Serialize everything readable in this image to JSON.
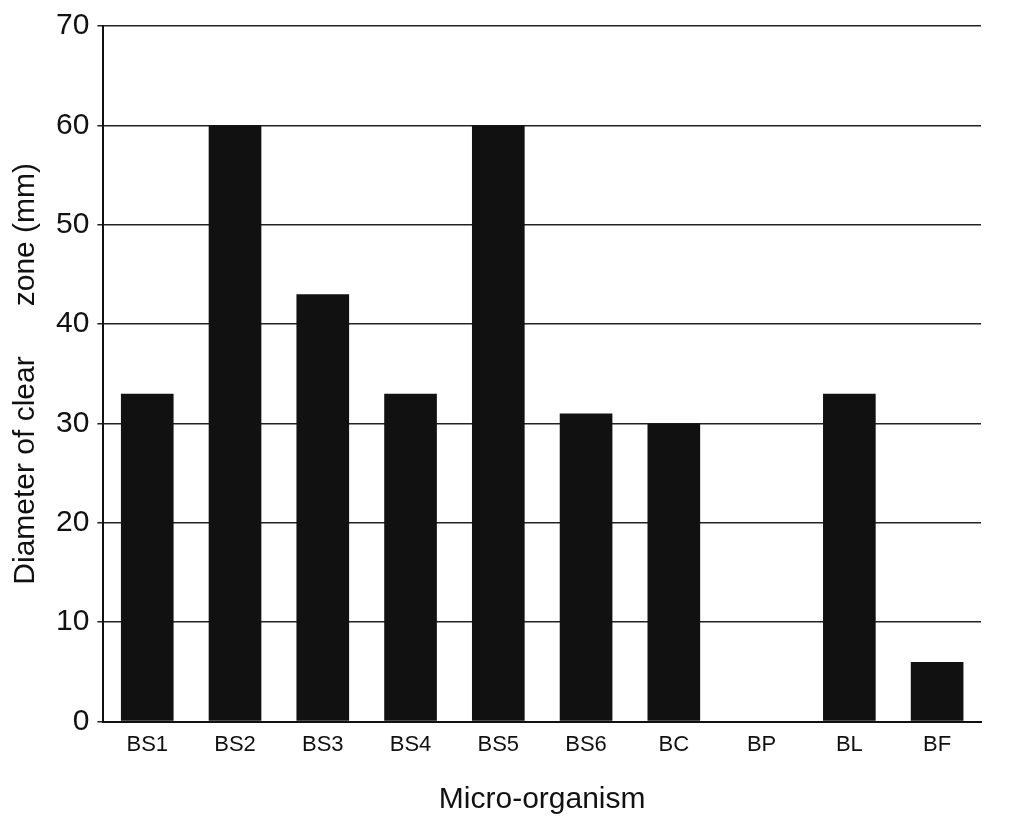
{
  "chart_data": {
    "type": "bar",
    "xlabel": "Micro-organism",
    "ylabel": "Diameter of clear      zone (mm)",
    "categories": [
      "BS1",
      "BS2",
      "BS3",
      "BS4",
      "BS5",
      "BS6",
      "BC",
      "BP",
      "BL",
      "BF"
    ],
    "values": [
      33,
      60,
      43,
      33,
      60,
      31,
      30,
      0,
      33,
      6
    ],
    "color": "#111111",
    "ylim": [
      0,
      70
    ],
    "yticks": [
      0,
      10,
      20,
      30,
      40,
      50,
      60,
      70
    ],
    "grid": "y"
  }
}
